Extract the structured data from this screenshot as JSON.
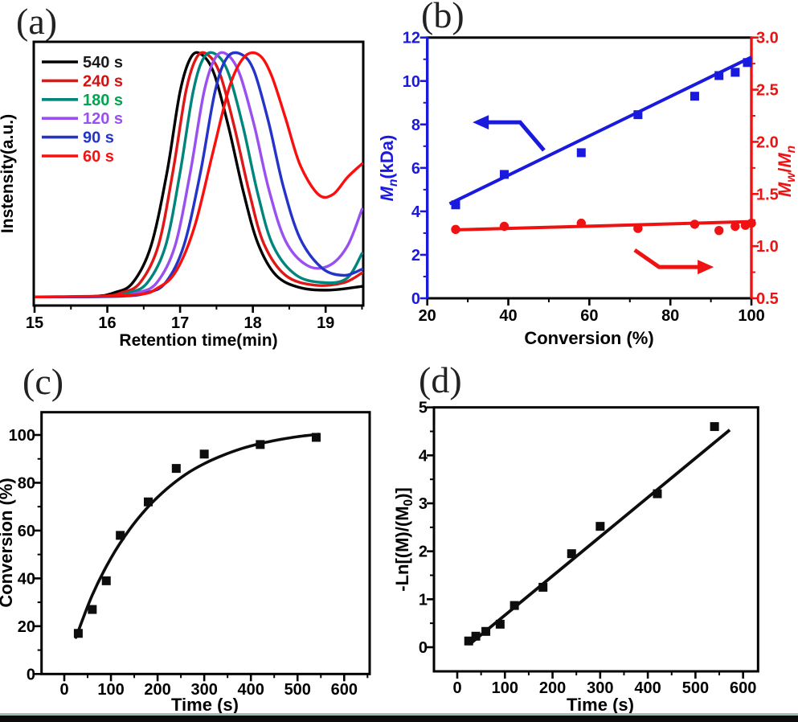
{
  "figure": {
    "bottom_bar_color": "#0b0b0b",
    "bottom_bar_accent": "#9dbfae",
    "background": "#ffffff"
  },
  "chart_data": [
    {
      "panel_label": "(a)",
      "type": "line",
      "xlabel": "Retention time(min)",
      "ylabel": "Instensity(a.u.)",
      "xlim": [
        15,
        19.54
      ],
      "x_ticks": [
        "15",
        "16",
        "17",
        "18",
        "19"
      ],
      "x_minor_ticks": [
        15.5,
        16.5,
        17.5,
        18.5,
        19.5
      ],
      "grid": false,
      "legend_position": "top-left",
      "series": [
        {
          "label": "540 s",
          "line_color": "#000000",
          "text_color": "#1a1a1a",
          "peak_retention_min": 17.3,
          "points": [
            [
              15.02,
              0.012
            ],
            [
              15.8,
              0.014
            ],
            [
              16.1,
              0.03
            ],
            [
              16.35,
              0.07
            ],
            [
              16.6,
              0.22
            ],
            [
              16.82,
              0.52
            ],
            [
              17.0,
              0.85
            ],
            [
              17.15,
              0.99
            ],
            [
              17.3,
              1.0
            ],
            [
              17.47,
              0.92
            ],
            [
              17.67,
              0.7
            ],
            [
              17.87,
              0.44
            ],
            [
              18.07,
              0.23
            ],
            [
              18.32,
              0.1
            ],
            [
              18.65,
              0.05
            ],
            [
              19.05,
              0.04
            ],
            [
              19.5,
              0.055
            ]
          ]
        },
        {
          "label": "240 s",
          "line_color": "#e01717",
          "text_color": "#cf1212",
          "peak_retention_min": 17.38,
          "points": [
            [
              15.02,
              0.012
            ],
            [
              15.9,
              0.014
            ],
            [
              16.2,
              0.03
            ],
            [
              16.45,
              0.07
            ],
            [
              16.7,
              0.22
            ],
            [
              16.9,
              0.52
            ],
            [
              17.08,
              0.85
            ],
            [
              17.23,
              0.99
            ],
            [
              17.38,
              1.0
            ],
            [
              17.55,
              0.92
            ],
            [
              17.75,
              0.7
            ],
            [
              17.95,
              0.44
            ],
            [
              18.15,
              0.23
            ],
            [
              18.45,
              0.1
            ],
            [
              18.85,
              0.06
            ],
            [
              19.25,
              0.07
            ],
            [
              19.5,
              0.11
            ]
          ]
        },
        {
          "label": "180 s",
          "line_color": "#00857c",
          "text_color": "#00a550",
          "peak_retention_min": 17.5,
          "points": [
            [
              15.02,
              0.012
            ],
            [
              16.0,
              0.015
            ],
            [
              16.3,
              0.03
            ],
            [
              16.55,
              0.07
            ],
            [
              16.8,
              0.22
            ],
            [
              17.0,
              0.52
            ],
            [
              17.18,
              0.85
            ],
            [
              17.33,
              0.99
            ],
            [
              17.5,
              1.0
            ],
            [
              17.67,
              0.92
            ],
            [
              17.87,
              0.7
            ],
            [
              18.07,
              0.43
            ],
            [
              18.28,
              0.22
            ],
            [
              18.6,
              0.1
            ],
            [
              19.0,
              0.07
            ],
            [
              19.3,
              0.09
            ],
            [
              19.5,
              0.19
            ]
          ]
        },
        {
          "label": "120 s",
          "line_color": "#9a4ff0",
          "text_color": "#9a4ff0",
          "peak_retention_min": 17.65,
          "points": [
            [
              15.02,
              0.012
            ],
            [
              16.1,
              0.015
            ],
            [
              16.42,
              0.03
            ],
            [
              16.68,
              0.07
            ],
            [
              16.93,
              0.22
            ],
            [
              17.14,
              0.52
            ],
            [
              17.33,
              0.85
            ],
            [
              17.49,
              0.99
            ],
            [
              17.65,
              1.0
            ],
            [
              17.82,
              0.92
            ],
            [
              18.02,
              0.71
            ],
            [
              18.22,
              0.45
            ],
            [
              18.45,
              0.24
            ],
            [
              18.75,
              0.14
            ],
            [
              19.05,
              0.14
            ],
            [
              19.3,
              0.22
            ],
            [
              19.5,
              0.37
            ]
          ]
        },
        {
          "label": "90 s",
          "line_color": "#2434c8",
          "text_color": "#2434c8",
          "peak_retention_min": 17.85,
          "points": [
            [
              15.02,
              0.012
            ],
            [
              16.2,
              0.015
            ],
            [
              16.55,
              0.03
            ],
            [
              16.8,
              0.07
            ],
            [
              17.05,
              0.22
            ],
            [
              17.28,
              0.52
            ],
            [
              17.48,
              0.85
            ],
            [
              17.65,
              0.99
            ],
            [
              17.85,
              1.0
            ],
            [
              18.02,
              0.93
            ],
            [
              18.22,
              0.72
            ],
            [
              18.42,
              0.46
            ],
            [
              18.65,
              0.25
            ],
            [
              18.95,
              0.13
            ],
            [
              19.25,
              0.1
            ],
            [
              19.5,
              0.125
            ]
          ]
        },
        {
          "label": "60 s",
          "line_color": "#fa0e0e",
          "text_color": "#f51212",
          "peak_retention_min": 18.08,
          "points": [
            [
              15.02,
              0.012
            ],
            [
              16.35,
              0.02
            ],
            [
              16.7,
              0.05
            ],
            [
              16.95,
              0.12
            ],
            [
              17.2,
              0.3
            ],
            [
              17.45,
              0.6
            ],
            [
              17.68,
              0.87
            ],
            [
              17.88,
              0.99
            ],
            [
              18.08,
              1.0
            ],
            [
              18.25,
              0.92
            ],
            [
              18.45,
              0.74
            ],
            [
              18.65,
              0.55
            ],
            [
              18.9,
              0.43
            ],
            [
              19.1,
              0.43
            ],
            [
              19.3,
              0.5
            ],
            [
              19.5,
              0.555
            ]
          ]
        }
      ]
    },
    {
      "panel_label": "(b)",
      "type": "scatter",
      "xlabel": "Conversion (%)",
      "xlim": [
        20,
        100
      ],
      "x_ticks": [
        "20",
        "40",
        "60",
        "80",
        "100"
      ],
      "x_minor_ticks": [
        30,
        50,
        70,
        90
      ],
      "left_axis": {
        "label_segments": [
          {
            "t": "M",
            "i": true
          },
          {
            "t": "n",
            "i": true,
            "sub": true
          },
          {
            "t": "(kDa)"
          }
        ],
        "color": "#1a1adf",
        "ticks": [
          "0",
          "2",
          "4",
          "6",
          "8",
          "10",
          "12"
        ],
        "minor_ticks": [
          1,
          3,
          5,
          7,
          9,
          11
        ],
        "range": [
          0,
          12
        ]
      },
      "right_axis": {
        "label_segments": [
          {
            "t": "M",
            "i": true
          },
          {
            "t": "w",
            "i": true,
            "sub": true
          },
          {
            "t": "/"
          },
          {
            "t": "M",
            "i": true
          },
          {
            "t": "n",
            "i": true,
            "sub": true
          }
        ],
        "color": "#ee1212",
        "ticks": [
          "0.5",
          "1.0",
          "1.5",
          "2.0",
          "2.5",
          "3.0"
        ],
        "minor_ticks": [
          0.75,
          1.25,
          1.75,
          2.25,
          2.75
        ],
        "range": [
          0.5,
          3.0
        ]
      },
      "series": [
        {
          "name": "Mn (kDa)",
          "axis": "left",
          "marker": "square",
          "color": "#1a1adf",
          "points": [
            [
              27,
              4.3
            ],
            [
              39,
              5.7
            ],
            [
              58,
              6.7
            ],
            [
              72,
              8.45
            ],
            [
              86,
              9.3
            ],
            [
              92,
              10.25
            ],
            [
              96,
              10.4
            ],
            [
              99,
              10.85
            ]
          ],
          "fit_line": [
            [
              25.5,
              4.35
            ],
            [
              100,
              11.1
            ]
          ]
        },
        {
          "name": "Mw/Mn",
          "axis": "right",
          "marker": "circle",
          "color": "#ee1212",
          "points": [
            [
              27,
              1.16
            ],
            [
              39,
              1.19
            ],
            [
              58,
              1.22
            ],
            [
              72,
              1.17
            ],
            [
              86,
              1.21
            ],
            [
              92,
              1.15
            ],
            [
              96,
              1.19
            ],
            [
              98.5,
              1.2
            ],
            [
              100,
              1.22
            ]
          ],
          "fit_line": [
            [
              26,
              1.155
            ],
            [
              100,
              1.235
            ]
          ]
        }
      ],
      "arrows": [
        {
          "color": "#1a1adf",
          "direction": "left",
          "points_left_axis_units": [
            [
              48.8,
              6.81
            ],
            [
              42.9,
              8.1
            ],
            [
              31.2,
              8.1
            ]
          ]
        },
        {
          "color": "#ee1212",
          "direction": "right",
          "points_left_axis_units": [
            [
              71.2,
              2.22
            ],
            [
              77.2,
              1.44
            ],
            [
              90.7,
              1.44
            ]
          ]
        }
      ]
    },
    {
      "panel_label": "(c)",
      "type": "scatter",
      "xlabel": "Time (s)",
      "ylabel": "Conversion (%)",
      "xlim": [
        -48,
        654
      ],
      "ylim": [
        0,
        109.5
      ],
      "x_ticks": [
        "0",
        "100",
        "200",
        "300",
        "400",
        "500",
        "600"
      ],
      "x_minor_ticks": [
        50,
        150,
        250,
        350,
        450,
        550,
        650
      ],
      "y_ticks": [
        "0",
        "20",
        "40",
        "60",
        "80",
        "100"
      ],
      "y_minor_ticks": [
        10,
        30,
        50,
        70,
        90
      ],
      "color": "#0d0d0d",
      "points": [
        [
          30,
          17
        ],
        [
          60,
          27
        ],
        [
          90,
          39
        ],
        [
          120,
          58
        ],
        [
          180,
          72
        ],
        [
          240,
          86
        ],
        [
          300,
          92
        ],
        [
          420,
          96
        ],
        [
          540,
          99
        ]
      ],
      "fit_curve": [
        [
          25,
          15.3
        ],
        [
          60,
          33
        ],
        [
          100,
          48.5
        ],
        [
          140,
          60.5
        ],
        [
          180,
          70
        ],
        [
          220,
          77.5
        ],
        [
          260,
          83.5
        ],
        [
          300,
          88
        ],
        [
          340,
          91.5
        ],
        [
          380,
          94.3
        ],
        [
          420,
          96.4
        ],
        [
          460,
          98
        ],
        [
          500,
          99.3
        ],
        [
          545,
          100.3
        ]
      ]
    },
    {
      "panel_label": "(d)",
      "type": "scatter",
      "xlabel": "Time (s)",
      "ylabel_segments": [
        {
          "t": "-Ln[(M)/(M"
        },
        {
          "t": "0",
          "sub": true
        },
        {
          "t": ")]"
        }
      ],
      "xlim": [
        -49,
        631
      ],
      "ylim": [
        -0.5,
        5.0
      ],
      "x_ticks": [
        "0",
        "100",
        "200",
        "300",
        "400",
        "500",
        "600"
      ],
      "x_minor_ticks": [
        50,
        150,
        250,
        350,
        450,
        550
      ],
      "y_ticks": [
        "0",
        "1",
        "2",
        "3",
        "4",
        "5"
      ],
      "y_minor_ticks": [
        0.5,
        1.5,
        2.5,
        3.5,
        4.5
      ],
      "color": "#0d0d0d",
      "points": [
        [
          24,
          0.13
        ],
        [
          39,
          0.23
        ],
        [
          60,
          0.33
        ],
        [
          90,
          0.48
        ],
        [
          120,
          0.87
        ],
        [
          180,
          1.25
        ],
        [
          240,
          1.95
        ],
        [
          300,
          2.52
        ],
        [
          420,
          3.2
        ],
        [
          540,
          4.6
        ]
      ],
      "fit_line": [
        [
          27,
          0.07
        ],
        [
          572,
          4.53
        ]
      ]
    }
  ]
}
